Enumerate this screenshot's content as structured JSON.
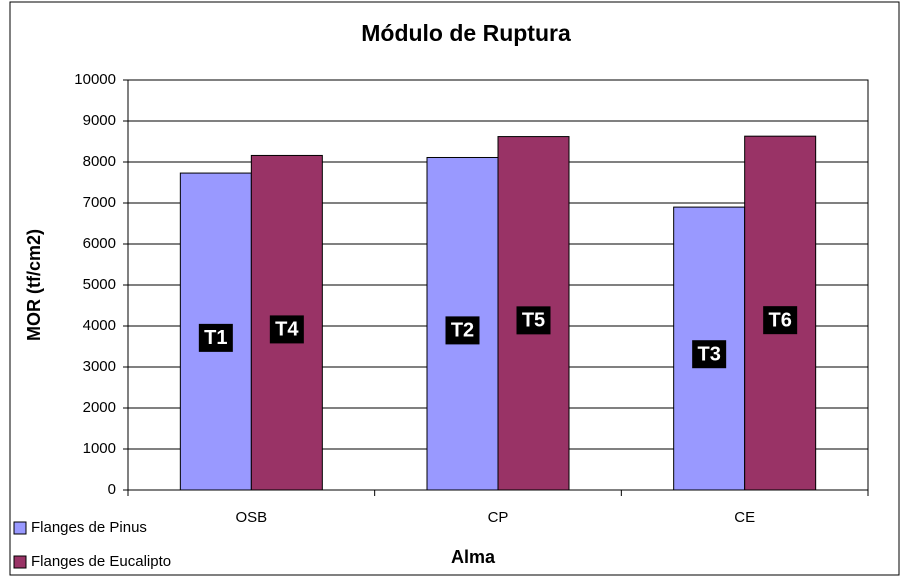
{
  "chart_data": {
    "type": "bar",
    "title": "Módulo de Ruptura",
    "x_label": "Alma",
    "y_label": "MOR (tf/cm2)",
    "categories": [
      "OSB",
      "CP",
      "CE"
    ],
    "series": [
      {
        "name": "Flanges de Pinus",
        "color": "#9999ff",
        "values": [
          7730,
          8110,
          6900
        ],
        "labels": [
          "T1",
          "T2",
          "T3"
        ]
      },
      {
        "name": "Flanges de Eucalipto",
        "color": "#993366",
        "values": [
          8160,
          8620,
          8630
        ],
        "labels": [
          "T4",
          "T5",
          "T6"
        ]
      }
    ],
    "ylim": [
      0,
      10000
    ],
    "yticks": [
      0,
      1000,
      2000,
      3000,
      4000,
      5000,
      6000,
      7000,
      8000,
      9000,
      10000
    ],
    "grid": true,
    "legend": "bottom-left"
  }
}
